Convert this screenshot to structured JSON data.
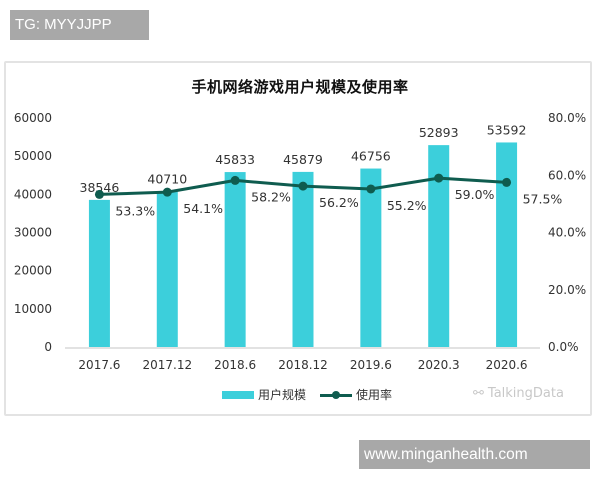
{
  "overlays": {
    "top_badge": "TG: MYYJJPP",
    "bottom_badge": "www.minganhealth.com"
  },
  "watermark": {
    "icon": "wechat-icon",
    "text": "TalkingData"
  },
  "colors": {
    "bar": "#3ccfdb",
    "line": "#0f5c4f",
    "axis": "#d9d9d9",
    "text": "#333333"
  },
  "chart_data": {
    "type": "bar+line",
    "title": "手机网络游戏用户规模及使用率",
    "categories": [
      "2017.6",
      "2017.12",
      "2018.6",
      "2018.12",
      "2019.6",
      "2020.3",
      "2020.6"
    ],
    "series": [
      {
        "name": "用户规模",
        "type": "bar",
        "axis": "left",
        "values": [
          38546,
          40710,
          45833,
          45879,
          46756,
          52893,
          53592
        ],
        "labels": [
          "38546",
          "40710",
          "45833",
          "45879",
          "46756",
          "52893",
          "53592"
        ]
      },
      {
        "name": "使用率",
        "type": "line",
        "axis": "right",
        "values": [
          53.3,
          54.1,
          58.2,
          56.2,
          55.2,
          59.0,
          57.5
        ],
        "labels": [
          "53.3%",
          "54.1%",
          "58.2%",
          "56.2%",
          "55.2%",
          "59.0%",
          "57.5%"
        ]
      }
    ],
    "left_axis": {
      "ylim": [
        0,
        60000
      ],
      "ticks": [
        "0",
        "10000",
        "20000",
        "30000",
        "40000",
        "50000",
        "60000"
      ]
    },
    "right_axis": {
      "ylim": [
        0,
        80
      ],
      "ticks": [
        "0.0%",
        "20.0%",
        "40.0%",
        "60.0%",
        "80.0%"
      ]
    },
    "xlabel": "",
    "ylabel": "",
    "grid": false,
    "legend": {
      "position": "bottom",
      "entries": [
        "用户规模",
        "使用率"
      ]
    }
  }
}
